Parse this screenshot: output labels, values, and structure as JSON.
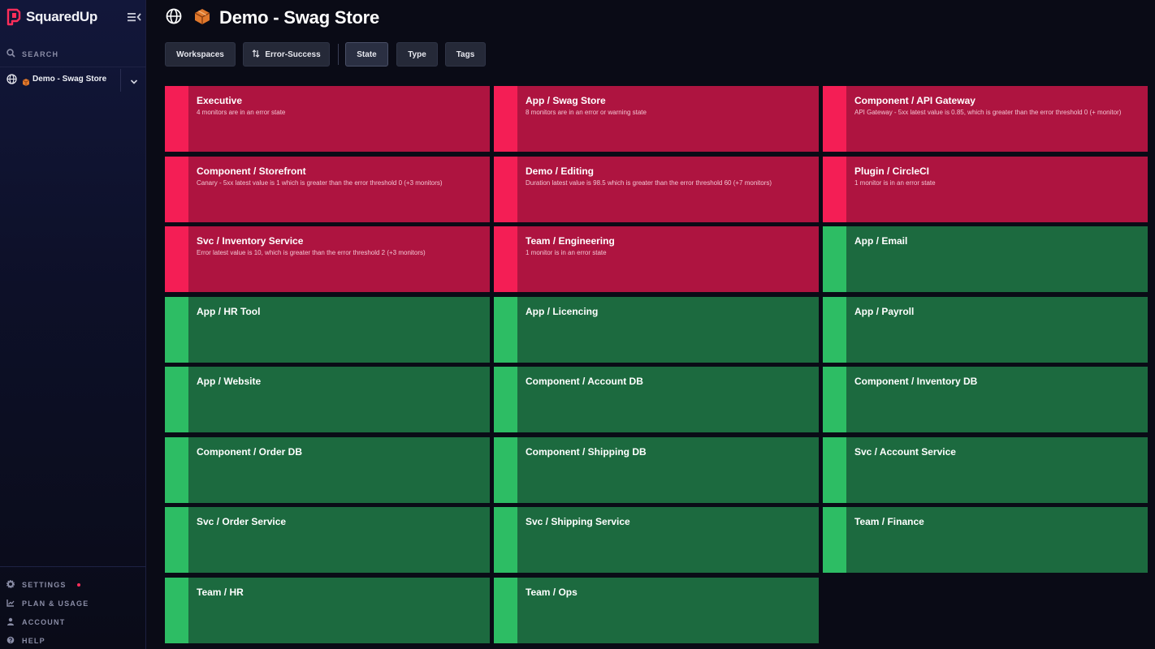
{
  "sidebar": {
    "brand": "SquaredUp",
    "search_label": "SEARCH",
    "workspace": "Demo - Swag Store",
    "bottom_nav": [
      {
        "label": "SETTINGS",
        "icon": "gear-icon",
        "alert": true
      },
      {
        "label": "PLAN & USAGE",
        "icon": "chart-icon",
        "alert": false
      },
      {
        "label": "ACCOUNT",
        "icon": "user-icon",
        "alert": false
      },
      {
        "label": "HELP",
        "icon": "help-icon",
        "alert": false
      }
    ]
  },
  "header": {
    "title": "Demo - Swag Store"
  },
  "toolbar": {
    "buttons": [
      {
        "label": "Workspaces",
        "active": false
      },
      {
        "label": "Error-Success",
        "active": false,
        "icon": "sort-icon"
      },
      {
        "label": "State",
        "active": true
      },
      {
        "label": "Type",
        "active": false
      },
      {
        "label": "Tags",
        "active": false
      }
    ]
  },
  "colors": {
    "error_tile": "#ae1440",
    "error_stripe": "#f41e55",
    "success_tile": "#1c6a3f",
    "success_stripe": "#2dbd64",
    "background": "#0a0b16"
  },
  "tiles": [
    {
      "title": "Executive",
      "state": "error",
      "desc": "4 monitors are in an error state"
    },
    {
      "title": "App / Swag Store",
      "state": "error",
      "desc": "8 monitors are in an error or warning state"
    },
    {
      "title": "Component / API Gateway",
      "state": "error",
      "desc": "API Gateway - 5xx latest value is 0.85, which is greater than the error threshold 0 (+ monitor)"
    },
    {
      "title": "Component / Storefront",
      "state": "error",
      "desc": "Canary - 5xx latest value is 1 which is greater than the error threshold 0 (+3 monitors)"
    },
    {
      "title": "Demo / Editing",
      "state": "error",
      "desc": "Duration latest value is 98.5 which is greater than the error threshold 60 (+7 monitors)"
    },
    {
      "title": "Plugin / CircleCI",
      "state": "error",
      "desc": "1 monitor is in an error state"
    },
    {
      "title": "Svc / Inventory Service",
      "state": "error",
      "desc": "Error latest value is 10, which is greater than the error threshold 2 (+3 monitors)"
    },
    {
      "title": "Team / Engineering",
      "state": "error",
      "desc": "1 monitor is in an error state"
    },
    {
      "title": "App / Email",
      "state": "success",
      "desc": ""
    },
    {
      "title": "App / HR Tool",
      "state": "success",
      "desc": ""
    },
    {
      "title": "App / Licencing",
      "state": "success",
      "desc": ""
    },
    {
      "title": "App / Payroll",
      "state": "success",
      "desc": ""
    },
    {
      "title": "App / Website",
      "state": "success",
      "desc": ""
    },
    {
      "title": "Component / Account DB",
      "state": "success",
      "desc": ""
    },
    {
      "title": "Component / Inventory DB",
      "state": "success",
      "desc": ""
    },
    {
      "title": "Component / Order DB",
      "state": "success",
      "desc": ""
    },
    {
      "title": "Component / Shipping DB",
      "state": "success",
      "desc": ""
    },
    {
      "title": "Svc / Account Service",
      "state": "success",
      "desc": ""
    },
    {
      "title": "Svc / Order Service",
      "state": "success",
      "desc": ""
    },
    {
      "title": "Svc / Shipping Service",
      "state": "success",
      "desc": ""
    },
    {
      "title": "Team / Finance",
      "state": "success",
      "desc": ""
    },
    {
      "title": "Team / HR",
      "state": "success",
      "desc": ""
    },
    {
      "title": "Team / Ops",
      "state": "success",
      "desc": ""
    }
  ]
}
